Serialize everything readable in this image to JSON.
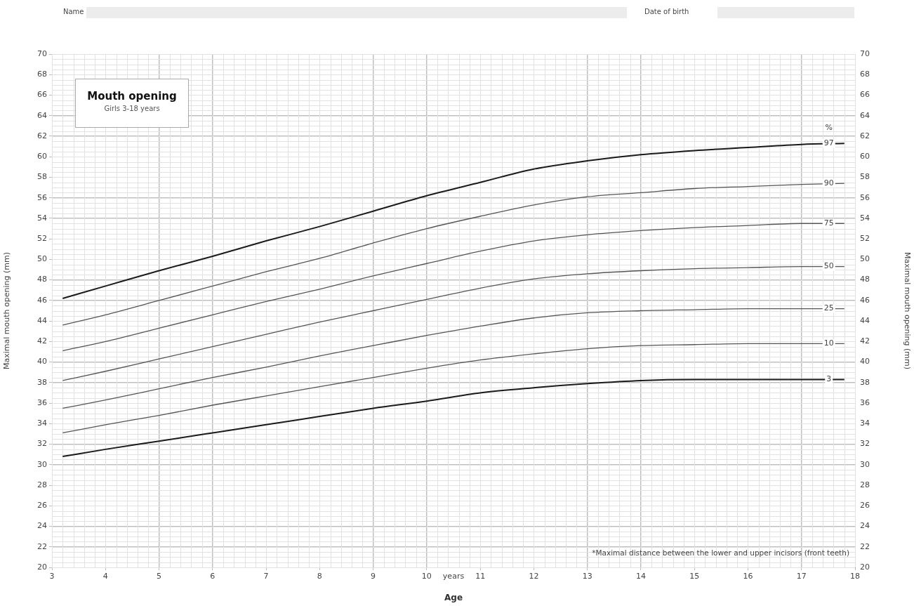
{
  "chart_data": {
    "type": "line",
    "title": "Mouth opening",
    "subtitle": "Girls 3-18 years",
    "xlabel": "Age",
    "ylabel": "Maximal mouth opening (mm)",
    "y2label": "Maximal mouth opening (mm)",
    "legend_title": "%",
    "annotations": [
      "Name",
      "Date of birth",
      "*Maximal distance between the lower and upper incisors (front teeth)"
    ],
    "x": [
      3.2,
      4,
      5,
      6,
      7,
      8,
      9,
      10,
      11,
      12,
      13,
      14,
      15,
      16,
      17,
      17.8
    ],
    "series": [
      {
        "name": "97",
        "color": "#1a1a1a",
        "values": [
          46.2,
          47.4,
          48.9,
          50.3,
          51.8,
          53.2,
          54.7,
          56.2,
          57.5,
          58.8,
          59.6,
          60.2,
          60.6,
          60.9,
          61.2,
          61.3
        ]
      },
      {
        "name": "90",
        "color": "#555555",
        "values": [
          43.6,
          44.6,
          46.0,
          47.4,
          48.8,
          50.1,
          51.6,
          53.0,
          54.2,
          55.3,
          56.1,
          56.5,
          56.9,
          57.1,
          57.3,
          57.4
        ]
      },
      {
        "name": "75",
        "color": "#555555",
        "values": [
          41.1,
          42.0,
          43.3,
          44.6,
          45.9,
          47.1,
          48.4,
          49.6,
          50.8,
          51.8,
          52.4,
          52.8,
          53.1,
          53.3,
          53.5,
          53.5
        ]
      },
      {
        "name": "50",
        "color": "#555555",
        "values": [
          38.2,
          39.1,
          40.3,
          41.5,
          42.7,
          43.9,
          45.0,
          46.1,
          47.2,
          48.1,
          48.6,
          48.9,
          49.1,
          49.2,
          49.3,
          49.3
        ]
      },
      {
        "name": "25",
        "color": "#555555",
        "values": [
          35.5,
          36.3,
          37.4,
          38.5,
          39.5,
          40.6,
          41.6,
          42.6,
          43.5,
          44.3,
          44.8,
          45.0,
          45.1,
          45.2,
          45.2,
          45.2
        ]
      },
      {
        "name": "10",
        "color": "#555555",
        "values": [
          33.1,
          33.9,
          34.8,
          35.8,
          36.7,
          37.6,
          38.5,
          39.4,
          40.2,
          40.8,
          41.3,
          41.6,
          41.7,
          41.8,
          41.8,
          41.8
        ]
      },
      {
        "name": "3",
        "color": "#1a1a1a",
        "values": [
          30.8,
          31.5,
          32.3,
          33.1,
          33.9,
          34.7,
          35.5,
          36.2,
          37.0,
          37.5,
          37.9,
          38.2,
          38.3,
          38.3,
          38.3,
          38.3
        ]
      }
    ],
    "xlim": [
      3,
      18
    ],
    "xticks": [
      3,
      4,
      5,
      6,
      7,
      8,
      9,
      10,
      {
        "value": 10.5,
        "label": "years"
      },
      11,
      12,
      13,
      14,
      15,
      16,
      17,
      18
    ],
    "ylim": [
      20,
      70
    ],
    "yticks": [
      20,
      22,
      24,
      26,
      28,
      30,
      32,
      34,
      36,
      38,
      40,
      42,
      44,
      46,
      48,
      50,
      52,
      54,
      56,
      58,
      60,
      62,
      64,
      66,
      68,
      70
    ],
    "y2lim": [
      20,
      70
    ],
    "y2ticks": [
      20,
      22,
      24,
      26,
      28,
      30,
      32,
      34,
      36,
      38,
      40,
      42,
      44,
      46,
      48,
      50,
      52,
      54,
      56,
      58,
      60,
      62,
      64,
      66,
      68,
      70
    ],
    "grid": true,
    "legend": false,
    "marker": "none",
    "line_style": "solid"
  }
}
